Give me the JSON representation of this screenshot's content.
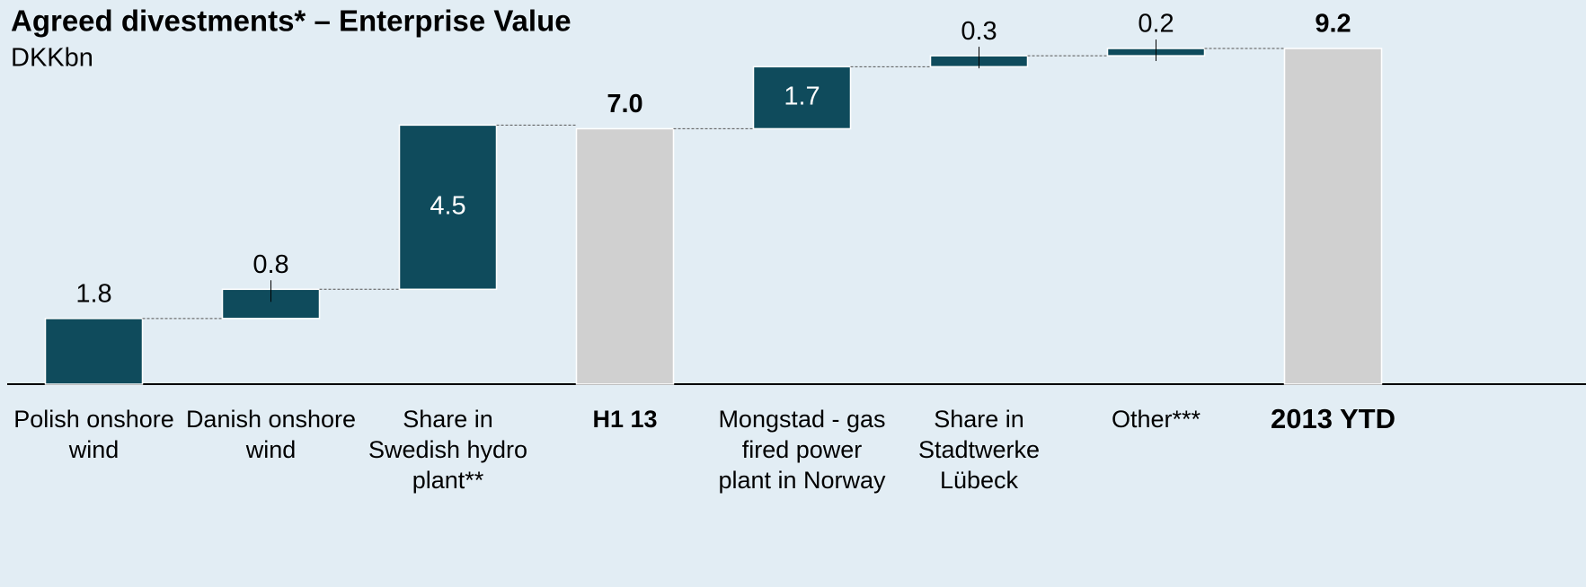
{
  "chart_data": {
    "type": "waterfall",
    "title": "Agreed divestments* – Enterprise Value",
    "subtitle": "DKKbn",
    "categories": [
      "Polish onshore wind",
      "Danish onshore wind",
      "Share in Swedish hydro plant**",
      "H1 13",
      "Mongstad - gas fired power plant in Norway",
      "Share in Stadtwerke Lübeck",
      "Other***",
      "2013 YTD"
    ],
    "values": [
      1.8,
      0.8,
      4.5,
      7.0,
      1.7,
      0.3,
      0.2,
      9.2
    ],
    "value_labels": [
      "1.8",
      "0.8",
      "4.5",
      "7.0",
      "1.7",
      "0.3",
      "0.2",
      "9.2"
    ],
    "is_total": [
      false,
      false,
      false,
      true,
      false,
      false,
      false,
      true
    ],
    "color": "#0f4b5c",
    "total_color": "#d0d0d0",
    "ylim": [
      0,
      9.2
    ]
  }
}
